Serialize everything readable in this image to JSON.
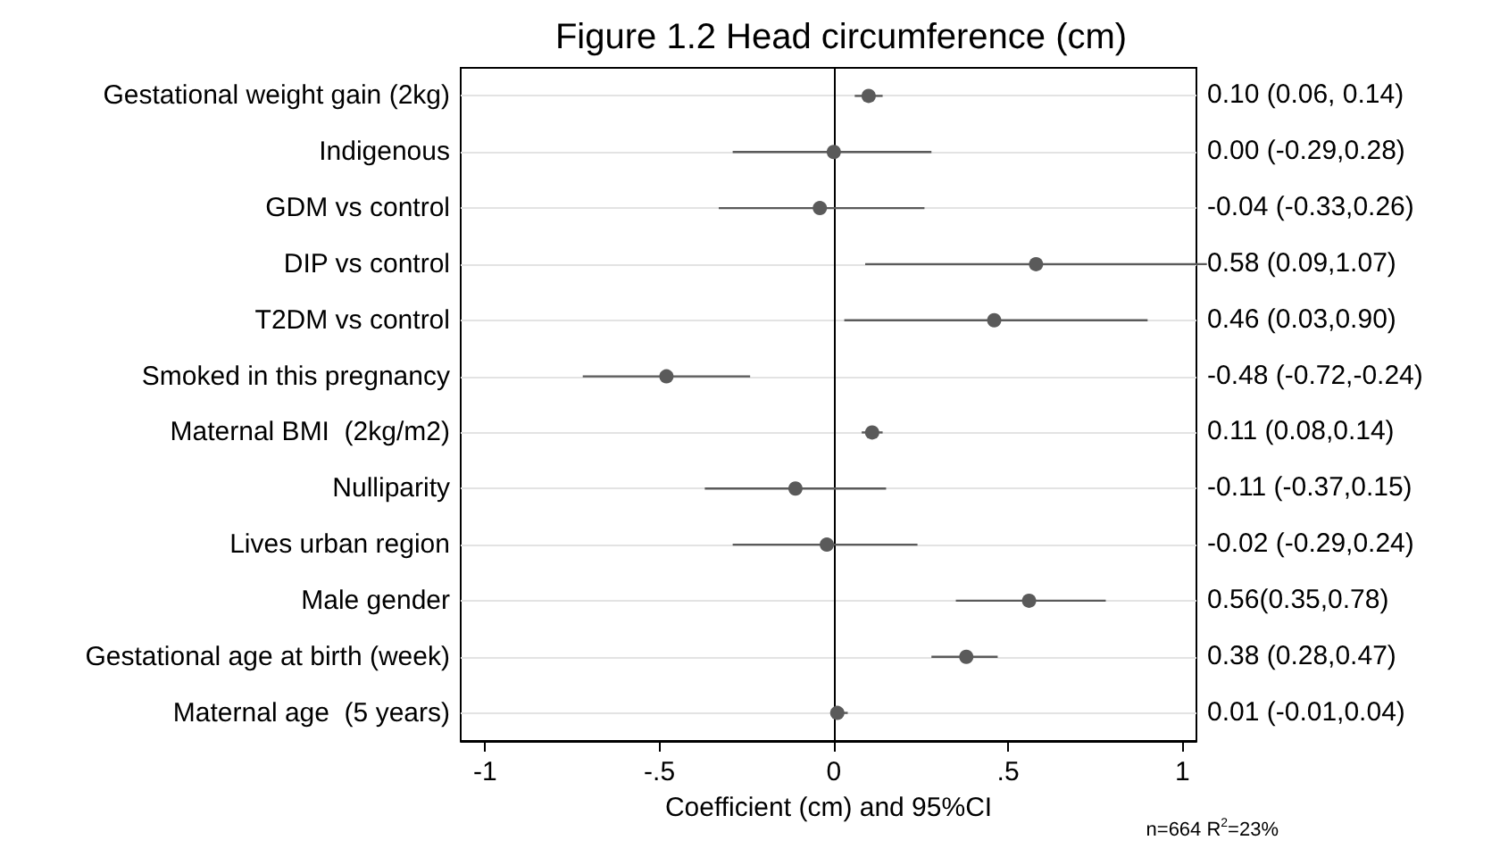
{
  "chart_data": {
    "type": "scatter",
    "orientation": "horizontal",
    "title": "Figure 1.2 Head circumference (cm)",
    "xlabel": "Coefficient (cm) and 95%CI",
    "categories": [
      "Gestational weight gain (2kg)",
      "Indigenous",
      "GDM vs control",
      "DIP vs control",
      "T2DM vs control",
      "Smoked in this pregnancy",
      "Maternal BMI  (2kg/m2)",
      "Nulliparity",
      "Lives urban region",
      "Male gender",
      "Gestational age at birth (week)",
      "Maternal age  (5 years)"
    ],
    "values": [
      0.1,
      0.0,
      -0.04,
      0.58,
      0.46,
      -0.48,
      0.11,
      -0.11,
      -0.02,
      0.56,
      0.38,
      0.01
    ],
    "errors": [
      [
        0.06,
        0.14
      ],
      [
        -0.29,
        0.28
      ],
      [
        -0.33,
        0.26
      ],
      [
        0.09,
        1.07
      ],
      [
        0.03,
        0.9
      ],
      [
        -0.72,
        -0.24
      ],
      [
        0.08,
        0.14
      ],
      [
        -0.37,
        0.15
      ],
      [
        -0.29,
        0.24
      ],
      [
        0.35,
        0.78
      ],
      [
        0.28,
        0.47
      ],
      [
        -0.01,
        0.04
      ]
    ],
    "color": "#5a5a5a",
    "marker": "circle",
    "grid": "y",
    "xlim": [
      -1.07,
      1.04
    ],
    "xticks": [
      {
        "value": -1,
        "label": "-1"
      },
      {
        "value": -0.5,
        "label": "-.5"
      },
      {
        "value": 0,
        "label": "0"
      },
      {
        "value": 0.5,
        "label": ".5"
      },
      {
        "value": 1,
        "label": "1"
      }
    ],
    "ref_lines": [
      {
        "axis": "x",
        "value": 0,
        "color": "#000000"
      }
    ],
    "annotations": [
      "0.10 (0.06, 0.14)",
      "0.00 (-0.29,0.28)",
      "-0.04 (-0.33,0.26)",
      "0.58 (0.09,1.07)",
      "0.46 (0.03,0.90)",
      "-0.48 (-0.72,-0.24)",
      "0.11 (0.08,0.14)",
      "-0.11 (-0.37,0.15)",
      "-0.02 (-0.29,0.24)",
      "0.56(0.35,0.78)",
      "0.38 (0.28,0.47)",
      "0.01 (-0.01,0.04)",
      "n=664 R$^{2}$=23%"
    ]
  }
}
